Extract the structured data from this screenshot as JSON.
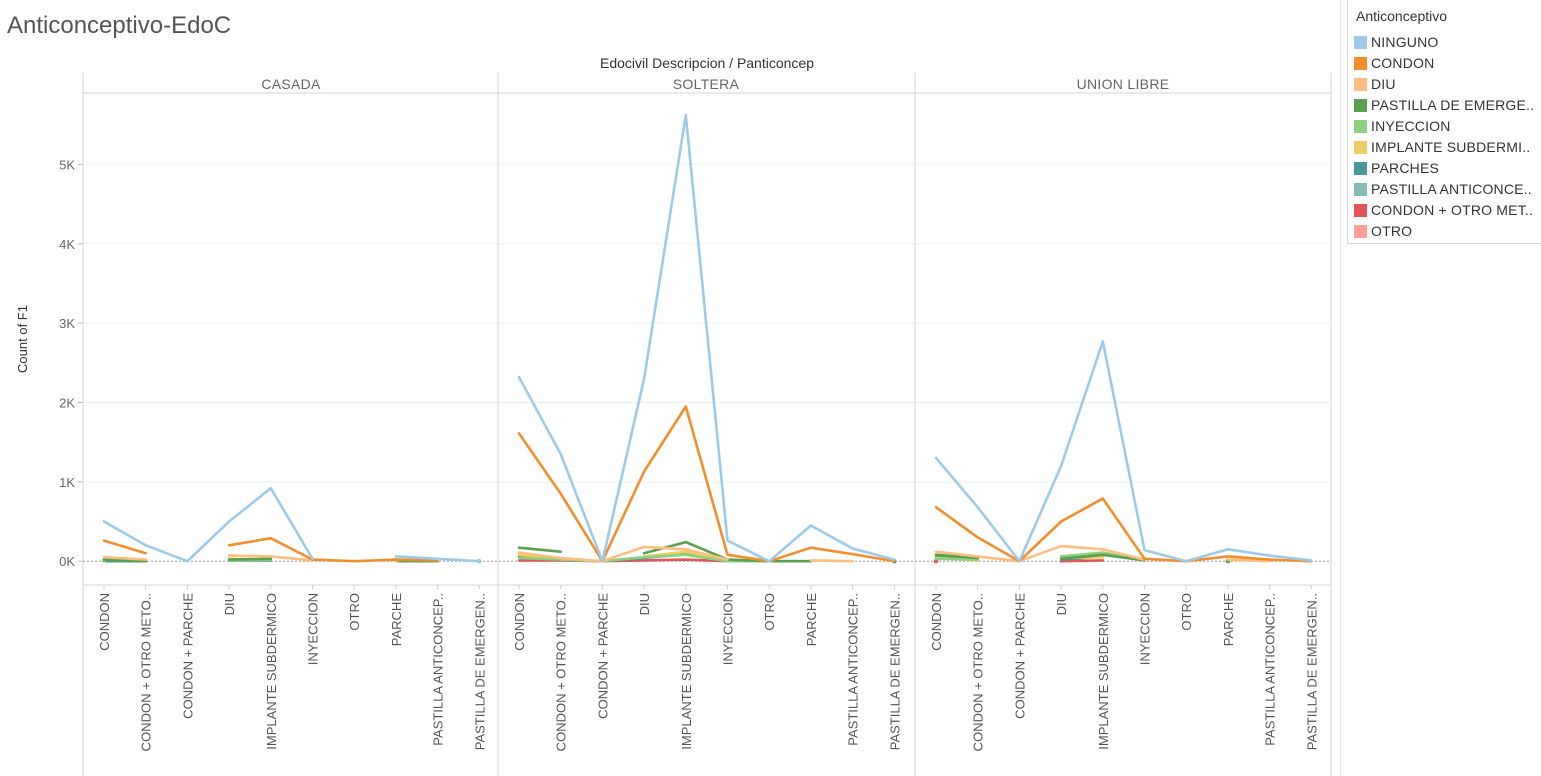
{
  "page": {
    "title": "Anticonceptivo-EdoC"
  },
  "legend": {
    "title": "Anticonceptivo",
    "items": [
      {
        "label": "NINGUNO",
        "color": "#9ecae9"
      },
      {
        "label": "CONDON",
        "color": "#f28e2b"
      },
      {
        "label": "DIU",
        "color": "#ffbe7d"
      },
      {
        "label": "PASTILLA DE EMERGE..",
        "color": "#59a14f"
      },
      {
        "label": "INYECCION",
        "color": "#8cd17d"
      },
      {
        "label": "IMPLANTE SUBDERMI..",
        "color": "#f1ce63"
      },
      {
        "label": "PARCHES",
        "color": "#499894"
      },
      {
        "label": "PASTILLA ANTICONCE..",
        "color": "#86bcb6"
      },
      {
        "label": "CONDON + OTRO MET..",
        "color": "#e15759"
      },
      {
        "label": "OTRO",
        "color": "#ff9d9a"
      }
    ]
  },
  "chart_data": {
    "type": "line",
    "header_label": "Edocivil Descripcion  /  Panticoncep",
    "ylabel": "Count of F1",
    "ylim": [
      -300,
      5900
    ],
    "yticks": [
      0,
      1000,
      2000,
      3000,
      4000,
      5000
    ],
    "ytick_labels": [
      "0K",
      "1K",
      "2K",
      "3K",
      "4K",
      "5K"
    ],
    "categories": [
      "CONDON",
      "CONDON + OTRO METO..",
      "CONDON + PARCHE",
      "DIU",
      "IMPLANTE SUBDERMICO",
      "INYECCION",
      "OTRO",
      "PARCHE",
      "PASTILLA ANTICONCEP..",
      "PASTILLA DE EMERGEN.."
    ],
    "panels": [
      {
        "name": "CASADA",
        "series": [
          {
            "name": "NINGUNO",
            "values": [
              500,
              200,
              0,
              500,
              920,
              30,
              null,
              60,
              30,
              0
            ]
          },
          {
            "name": "CONDON",
            "values": [
              260,
              100,
              null,
              200,
              290,
              20,
              0,
              20,
              10,
              null
            ]
          },
          {
            "name": "DIU",
            "values": [
              50,
              20,
              null,
              70,
              60,
              10,
              null,
              10,
              null,
              null
            ]
          },
          {
            "name": "PASTILLA DE EMERGE..",
            "values": [
              20,
              0,
              null,
              20,
              30,
              null,
              null,
              0,
              0,
              null
            ]
          },
          {
            "name": "INYECCION",
            "values": [
              10,
              null,
              null,
              10,
              20,
              null,
              null,
              null,
              null,
              0
            ]
          },
          {
            "name": "IMPLANTE SUBDERMI..",
            "values": [
              30,
              10,
              null,
              30,
              20,
              null,
              null,
              null,
              null,
              null
            ]
          },
          {
            "name": "PARCHES",
            "values": [
              0,
              0,
              null,
              10,
              10,
              null,
              null,
              null,
              null,
              null
            ]
          },
          {
            "name": "CONDON + OTRO MET..",
            "values": [
              0,
              0,
              null,
              null,
              null,
              null,
              null,
              null,
              null,
              null
            ]
          }
        ]
      },
      {
        "name": "SOLTERA",
        "series": [
          {
            "name": "NINGUNO",
            "values": [
              2320,
              1350,
              0,
              2300,
              5620,
              260,
              0,
              450,
              160,
              20
            ]
          },
          {
            "name": "CONDON",
            "values": [
              1610,
              850,
              0,
              1130,
              1950,
              80,
              0,
              170,
              90,
              0
            ]
          },
          {
            "name": "DIU",
            "values": [
              110,
              40,
              0,
              180,
              150,
              20,
              null,
              10,
              0,
              null
            ]
          },
          {
            "name": "PASTILLA DE EMERGE..",
            "values": [
              170,
              120,
              null,
              100,
              240,
              20,
              0,
              0,
              null,
              0
            ]
          },
          {
            "name": "INYECCION",
            "values": [
              40,
              20,
              0,
              50,
              80,
              0,
              0,
              0,
              null,
              0
            ]
          },
          {
            "name": "IMPLANTE SUBDERMI..",
            "values": [
              80,
              30,
              null,
              60,
              120,
              10,
              null,
              null,
              null,
              null
            ]
          },
          {
            "name": "PARCHES",
            "values": [
              60,
              20,
              0,
              40,
              90,
              0,
              null,
              null,
              null,
              null
            ]
          },
          {
            "name": "CONDON + OTRO MET..",
            "values": [
              10,
              10,
              0,
              10,
              20,
              0,
              null,
              null,
              null,
              null
            ]
          }
        ]
      },
      {
        "name": "UNION LIBRE",
        "series": [
          {
            "name": "NINGUNO",
            "values": [
              1300,
              680,
              0,
              1200,
              2770,
              140,
              0,
              150,
              70,
              10
            ]
          },
          {
            "name": "CONDON",
            "values": [
              680,
              300,
              0,
              500,
              790,
              30,
              0,
              60,
              20,
              0
            ]
          },
          {
            "name": "DIU",
            "values": [
              120,
              60,
              0,
              190,
              150,
              20,
              null,
              20,
              0,
              null
            ]
          },
          {
            "name": "PASTILLA DE EMERGE..",
            "values": [
              80,
              40,
              null,
              30,
              80,
              10,
              null,
              0,
              null,
              null
            ]
          },
          {
            "name": "INYECCION",
            "values": [
              30,
              20,
              null,
              60,
              110,
              10,
              null,
              10,
              null,
              null
            ]
          },
          {
            "name": "IMPLANTE SUBDERMI..",
            "values": [
              40,
              10,
              null,
              40,
              50,
              null,
              null,
              null,
              null,
              null
            ]
          },
          {
            "name": "PARCHES",
            "values": [
              50,
              30,
              null,
              20,
              60,
              null,
              null,
              null,
              null,
              null
            ]
          },
          {
            "name": "CONDON + OTRO MET..",
            "values": [
              0,
              null,
              null,
              0,
              10,
              null,
              null,
              null,
              null,
              null
            ]
          }
        ]
      }
    ]
  }
}
